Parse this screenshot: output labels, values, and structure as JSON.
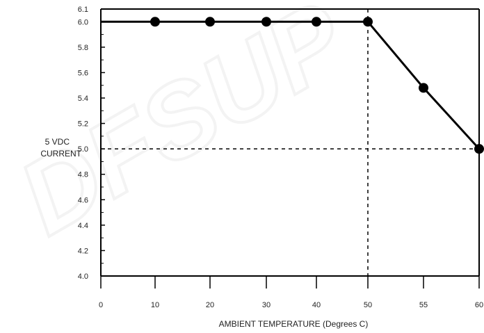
{
  "chart_data": {
    "type": "line",
    "xlabel": "AMBIENT TEMPERATURE (Degrees C)",
    "ylabel_lines": [
      "5 VDC",
      "CURRENT"
    ],
    "x_ticks": [
      "0",
      "10",
      "20",
      "30",
      "40",
      "50",
      "55",
      "60"
    ],
    "y_ticks": [
      "4.0",
      "4.2",
      "4.4",
      "4.6",
      "4.8",
      "5.0",
      "5.2",
      "5.4",
      "5.6",
      "5.8",
      "6.0",
      "6.1"
    ],
    "series": [
      {
        "points": [
          {
            "x": 10,
            "y": 6.0
          },
          {
            "x": 20,
            "y": 6.0
          },
          {
            "x": 30,
            "y": 6.0
          },
          {
            "x": 40,
            "y": 6.0
          },
          {
            "x": 50,
            "y": 6.0
          },
          {
            "x": 55,
            "y": 5.48
          },
          {
            "x": 60,
            "y": 5.0
          }
        ]
      }
    ],
    "reference_lines": {
      "x": 50,
      "y": 5.0
    },
    "ylim": [
      4.0,
      6.1
    ],
    "grid": false,
    "watermark": "DFSUP",
    "colors": {
      "line": "#000000",
      "marker": "#000000",
      "reference": "#000000",
      "watermark": "#f3f3f3"
    }
  }
}
